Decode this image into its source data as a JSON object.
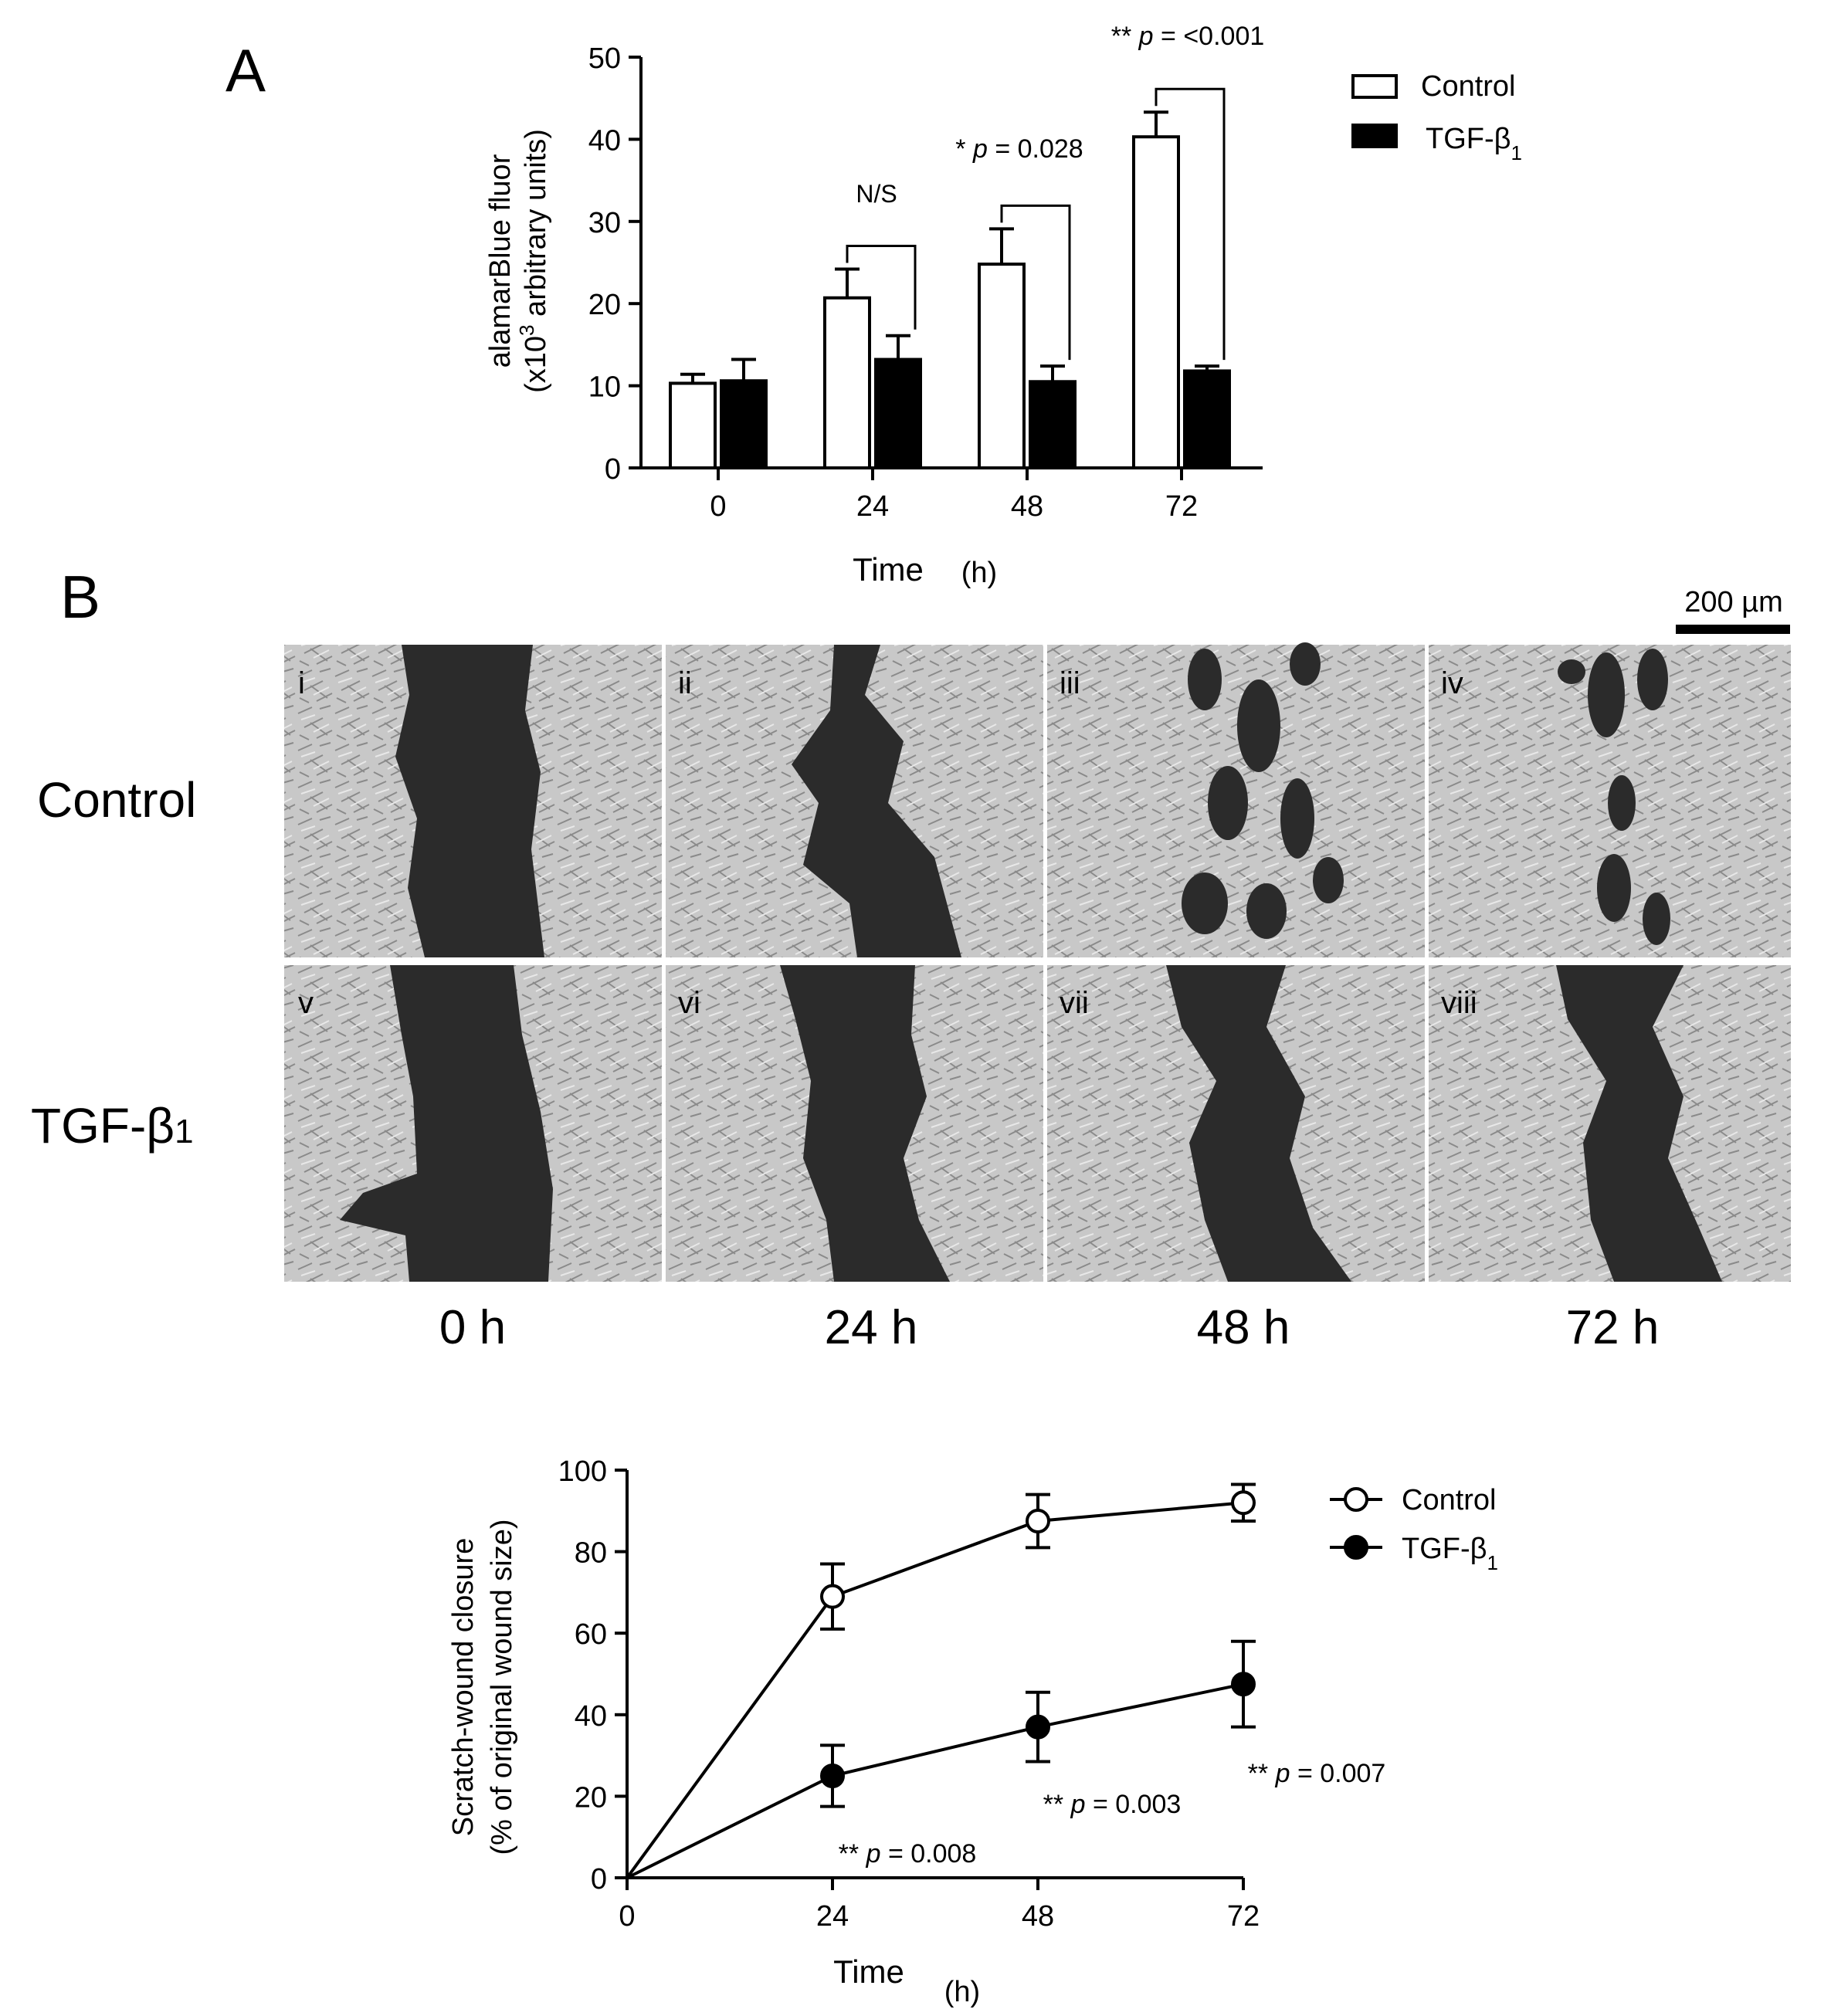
{
  "panel_a": {
    "letter": "A",
    "ylabel_line1": "alamarBlue fluor",
    "ylabel_line2_pre": "(x10",
    "ylabel_line2_sup": "3",
    "ylabel_line2_post": " arbitrary units)",
    "xlabel_main": "Time",
    "xlabel_unit": "(h)",
    "legend": {
      "control": "Control",
      "tgf_text": "TGF-β",
      "tgf_sub": "1"
    },
    "annotations": {
      "t24": "N/S",
      "t48_stars": "*",
      "t48_p": "p",
      "t48_val": "= 0.028",
      "t72_stars": "**",
      "t72_p": "p",
      "t72_val": "= <0.001"
    }
  },
  "panel_b": {
    "letter": "B",
    "scale_bar": "200 µm",
    "row_control": "Control",
    "row_tgf": "TGF-β",
    "row_tgf_sub": "1",
    "image_labels": [
      "i",
      "ii",
      "iii",
      "iv",
      "v",
      "vi",
      "vii",
      "viii"
    ],
    "time_labels": [
      "0 h",
      "24 h",
      "48 h",
      "72 h"
    ],
    "plot": {
      "ylabel_line1": "Scratch-wound closure",
      "ylabel_line2": "(% of original wound size)",
      "xlabel_main": "Time",
      "xlabel_unit": "(h)",
      "legend": {
        "control": "Control",
        "tgf_text": "TGF-β",
        "tgf_sub": "1"
      },
      "annotations": {
        "t24_stars": "**",
        "t24_p": "p",
        "t24_val": "= 0.008",
        "t48_stars": "**",
        "t48_p": "p",
        "t48_val": "= 0.003",
        "t72_stars": "**",
        "t72_p": "p",
        "t72_val": "= 0.007"
      }
    }
  },
  "chart_data": [
    {
      "type": "bar",
      "categories": [
        "0",
        "24",
        "48",
        "72"
      ],
      "series": [
        {
          "name": "Control",
          "values": [
            10.3,
            20.7,
            24.8,
            40.3
          ],
          "errors": [
            1.1,
            3.5,
            4.3,
            3.0
          ]
        },
        {
          "name": "TGF-β1",
          "values": [
            10.6,
            13.2,
            10.5,
            11.8
          ],
          "errors": [
            2.6,
            2.9,
            1.9,
            0.6
          ]
        }
      ],
      "xlabel": "Time (h)",
      "ylabel": "alamarBlue fluor (x10³ arbitrary units)",
      "ylim": [
        0,
        50
      ],
      "yticks": [
        0,
        10,
        20,
        30,
        40,
        50
      ],
      "legend": "top-right"
    },
    {
      "type": "line",
      "x": [
        0,
        24,
        48,
        72
      ],
      "series": [
        {
          "name": "Control",
          "values": [
            0,
            69,
            87.5,
            92
          ],
          "errors": [
            0,
            8,
            6.5,
            4.5
          ]
        },
        {
          "name": "TGF-β1",
          "values": [
            0,
            25,
            37,
            47.5
          ],
          "errors": [
            0,
            7.5,
            8.5,
            10.5
          ]
        }
      ],
      "xlabel": "Time (h)",
      "ylabel": "Scratch-wound closure (% of original wound size)",
      "xlim": [
        0,
        72
      ],
      "ylim": [
        0,
        100
      ],
      "xticks": [
        0,
        24,
        48,
        72
      ],
      "yticks": [
        0,
        20,
        40,
        60,
        80,
        100
      ],
      "legend": "top-right"
    }
  ],
  "colors": {
    "control_fill": "#ffffff",
    "tgf_fill": "#000000",
    "wound_gap": "#2b2b2b",
    "cell_field": "#c9c9c9"
  }
}
